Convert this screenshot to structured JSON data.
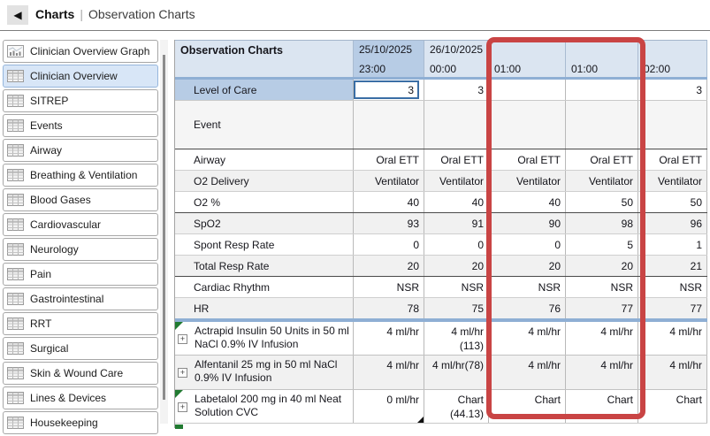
{
  "header": {
    "title": "Charts",
    "separator": "|",
    "subtitle": "Observation Charts",
    "back_icon": "left-arrow"
  },
  "sidebar": {
    "items": [
      {
        "label": "Clinician Overview Graph",
        "icon": "graph-icon",
        "selected": false
      },
      {
        "label": "Clinician Overview",
        "icon": "table-icon",
        "selected": true
      },
      {
        "label": "SITREP",
        "icon": "table-icon",
        "selected": false
      },
      {
        "label": "Events",
        "icon": "table-icon",
        "selected": false
      },
      {
        "label": "Airway",
        "icon": "table-icon",
        "selected": false
      },
      {
        "label": "Breathing & Ventilation",
        "icon": "table-icon",
        "selected": false
      },
      {
        "label": "Blood Gases",
        "icon": "table-icon",
        "selected": false
      },
      {
        "label": "Cardiovascular",
        "icon": "table-icon",
        "selected": false
      },
      {
        "label": "Neurology",
        "icon": "table-icon",
        "selected": false
      },
      {
        "label": "Pain",
        "icon": "table-icon",
        "selected": false
      },
      {
        "label": "Gastrointestinal",
        "icon": "table-icon",
        "selected": false
      },
      {
        "label": "RRT",
        "icon": "table-icon",
        "selected": false
      },
      {
        "label": "Surgical",
        "icon": "table-icon",
        "selected": false
      },
      {
        "label": "Skin & Wound Care",
        "icon": "table-icon",
        "selected": false
      },
      {
        "label": "Lines & Devices",
        "icon": "table-icon",
        "selected": false
      },
      {
        "label": "Housekeeping",
        "icon": "table-icon",
        "selected": false
      }
    ]
  },
  "table": {
    "title": "Observation Charts",
    "columns": [
      {
        "date": "25/10/2025",
        "time": "23:00"
      },
      {
        "date": "26/10/2025",
        "time": "00:00"
      },
      {
        "date": "",
        "time": "01:00"
      },
      {
        "date": "",
        "time": "01:00"
      },
      {
        "date": "",
        "time": "02:00"
      }
    ],
    "rows": [
      {
        "label": "Level of Care",
        "values": [
          "3",
          "3",
          "",
          "",
          "3"
        ]
      },
      {
        "label": "Event",
        "values": [
          "",
          "",
          "",
          "",
          ""
        ]
      },
      {
        "label": "Airway",
        "values": [
          "Oral ETT",
          "Oral ETT",
          "Oral ETT",
          "Oral ETT",
          "Oral ETT"
        ]
      },
      {
        "label": "O2 Delivery",
        "values": [
          "Ventilator",
          "Ventilator",
          "Ventilator",
          "Ventilator",
          "Ventilator"
        ]
      },
      {
        "label": "O2 %",
        "values": [
          "40",
          "40",
          "40",
          "50",
          "50"
        ]
      },
      {
        "label": "SpO2",
        "values": [
          "93",
          "91",
          "90",
          "98",
          "96"
        ]
      },
      {
        "label": "Spont Resp Rate",
        "values": [
          "0",
          "0",
          "0",
          "5",
          "1"
        ]
      },
      {
        "label": "Total Resp Rate",
        "values": [
          "20",
          "20",
          "20",
          "20",
          "21"
        ]
      },
      {
        "label": "Cardiac Rhythm",
        "values": [
          "NSR",
          "NSR",
          "NSR",
          "NSR",
          "NSR"
        ]
      },
      {
        "label": "HR",
        "values": [
          "78",
          "75",
          "76",
          "77",
          "77"
        ]
      },
      {
        "label": "Actrapid Insulin 50 Units in 50 ml NaCl 0.9% IV Infusion",
        "values": [
          "4 ml/hr",
          "4 ml/hr (113)",
          "4 ml/hr",
          "4 ml/hr",
          "4 ml/hr"
        ]
      },
      {
        "label": "Alfentanil 25 mg in 50 ml NaCl 0.9% IV Infusion",
        "values": [
          "4 ml/hr",
          "4 ml/hr(78)",
          "4 ml/hr",
          "4 ml/hr",
          "4 ml/hr"
        ]
      },
      {
        "label": "Labetalol 200 mg in 40 ml Neat Solution CVC",
        "values": [
          "0 ml/hr",
          "Chart (44.13)",
          "Chart",
          "Chart",
          "Chart"
        ]
      }
    ]
  },
  "highlight": {
    "color": "#c94444",
    "highlighted_time_columns": [
      "01:00",
      "01:00"
    ]
  }
}
